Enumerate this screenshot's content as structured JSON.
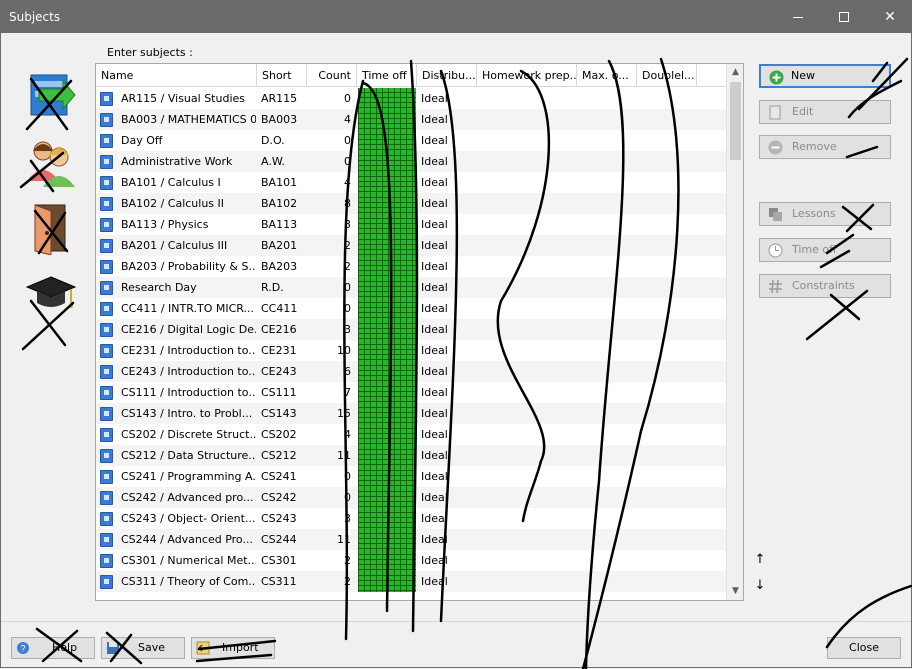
{
  "window": {
    "title": "Subjects",
    "controls": {
      "minimize": "minimize",
      "maximize": "maximize",
      "close": "✕"
    }
  },
  "left_icons": [
    {
      "name": "classes-icon"
    },
    {
      "name": "teachers-icon"
    },
    {
      "name": "classrooms-icon"
    },
    {
      "name": "subjects-icon"
    }
  ],
  "grid": {
    "caption": "Enter subjects :",
    "columns": [
      "Name",
      "Short",
      "Count",
      "Time off",
      "Distribu...",
      "Homework prep...",
      "Max. o...",
      "Doublel..."
    ],
    "rows": [
      {
        "name": "AR115  / Visual Studies",
        "short": "AR115",
        "count": "0",
        "dist": "Ideal"
      },
      {
        "name": "BA003  / MATHEMATICS   0",
        "short": "BA003",
        "count": "4",
        "dist": "Ideal"
      },
      {
        "name": "Day Off",
        "short": "D.O.",
        "count": "0",
        "dist": "Ideal"
      },
      {
        "name": "Administrative Work",
        "short": "A.W.",
        "count": "0",
        "dist": "Ideal"
      },
      {
        "name": "BA101  / Calculus I",
        "short": "BA101",
        "count": "4",
        "dist": "Ideal"
      },
      {
        "name": "BA102  / Calculus II",
        "short": "BA102",
        "count": "8",
        "dist": "Ideal"
      },
      {
        "name": "BA113  / Physics",
        "short": "BA113",
        "count": "3",
        "dist": "Ideal"
      },
      {
        "name": "BA201  / Calculus   III",
        "short": "BA201",
        "count": "2",
        "dist": "Ideal"
      },
      {
        "name": "BA203  / Probability & S...",
        "short": "BA203",
        "count": "2",
        "dist": "Ideal"
      },
      {
        "name": "Research Day",
        "short": "R.D.",
        "count": "0",
        "dist": "Ideal"
      },
      {
        "name": "CC411  / INTR.TO MICR...",
        "short": "CC411",
        "count": "0",
        "dist": "Ideal"
      },
      {
        "name": "CE216  / Digital Logic De...",
        "short": "CE216",
        "count": "3",
        "dist": "Ideal"
      },
      {
        "name": "CE231  / Introduction to...",
        "short": "CE231",
        "count": "10",
        "dist": "Ideal"
      },
      {
        "name": "CE243  / Introduction to...",
        "short": "CE243",
        "count": "6",
        "dist": "Ideal"
      },
      {
        "name": "CS111  / Introduction to...",
        "short": "CS111",
        "count": "7",
        "dist": "Ideal"
      },
      {
        "name": "CS143  / Intro. to Probl...",
        "short": "CS143",
        "count": "15",
        "dist": "Ideal"
      },
      {
        "name": "CS202  / Discrete Struct...",
        "short": "CS202",
        "count": "4",
        "dist": "Ideal"
      },
      {
        "name": "CS212  / Data Structure...",
        "short": "CS212",
        "count": "11",
        "dist": "Ideal"
      },
      {
        "name": "CS241  / Programming A...",
        "short": "CS241",
        "count": "0",
        "dist": "Ideal"
      },
      {
        "name": "CS242  / Advanced pro...",
        "short": "CS242",
        "count": "0",
        "dist": "Ideal"
      },
      {
        "name": "CS243  / Object- Orient...",
        "short": "CS243",
        "count": "3",
        "dist": "Ideal"
      },
      {
        "name": "CS244  / Advanced Pro...",
        "short": "CS244",
        "count": "11",
        "dist": "Ideal"
      },
      {
        "name": "CS301  / Numerical Met...",
        "short": "CS301",
        "count": "2",
        "dist": "Ideal"
      },
      {
        "name": "CS311  / Theory of Com...",
        "short": "CS311",
        "count": "2",
        "dist": "Ideal"
      }
    ],
    "scroll": {
      "up": "▲",
      "down": "▼"
    }
  },
  "right_panel": {
    "new_label": "New",
    "edit_label": "Edit",
    "remove_label": "Remove",
    "lessons_label": "Lessons",
    "timeoff_label": "Time off",
    "constraints_label": "Constraints",
    "move_up": "↑",
    "move_down": "↓"
  },
  "bottom": {
    "help_label": "Help",
    "save_label": "Save",
    "import_label": "Import",
    "close_label": "Close"
  },
  "colors": {
    "titlebar": "#6a6a6a",
    "timeoff_green": "#2fb22f",
    "primary_border": "#3c7fd6"
  }
}
